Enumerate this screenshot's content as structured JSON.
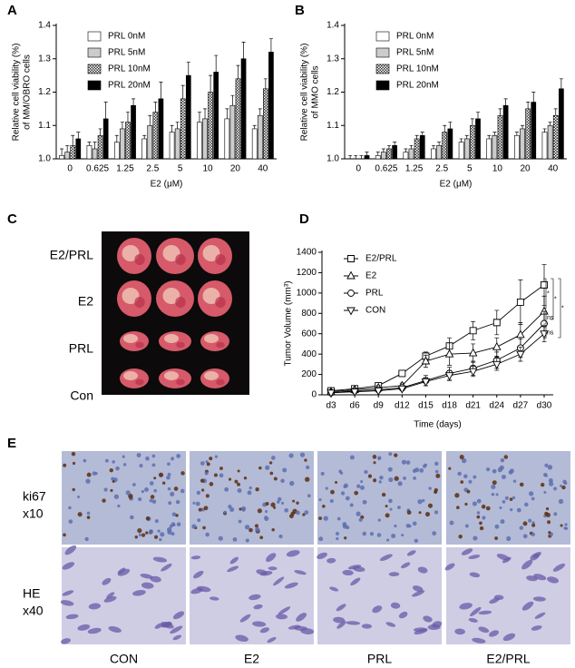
{
  "chart_data": [
    {
      "type": "bar",
      "panel": "A",
      "ylabel": [
        "Relative cell viability (%)",
        "of MM/OBRO cells"
      ],
      "xlabel": "E2 (μM)",
      "categories": [
        "0",
        "0.625",
        "1.25",
        "2.5",
        "5",
        "10",
        "20",
        "40"
      ],
      "ylim": [
        1.0,
        1.4
      ],
      "yticks": [
        {
          "value": 1.0,
          "label": "1.0"
        },
        1.1,
        1.2,
        1.3,
        1.4
      ],
      "legend": "upper left",
      "series": [
        {
          "name": "PRL 0nM",
          "color": "#ffffff",
          "values": [
            1.01,
            1.04,
            1.05,
            1.06,
            1.08,
            1.11,
            1.12,
            1.09
          ],
          "errors": [
            0.02,
            0.01,
            0.02,
            0.01,
            0.02,
            0.03,
            0.03,
            0.01
          ]
        },
        {
          "name": "PRL 5nM",
          "color": "#cccccc",
          "values": [
            1.02,
            1.03,
            1.09,
            1.1,
            1.09,
            1.12,
            1.16,
            1.13
          ],
          "errors": [
            0.02,
            0.02,
            0.02,
            0.03,
            0.02,
            0.03,
            0.03,
            0.02
          ]
        },
        {
          "name": "PRL 10nM",
          "color": "#777777",
          "hatch": true,
          "values": [
            1.04,
            1.07,
            1.11,
            1.14,
            1.18,
            1.2,
            1.24,
            1.21
          ],
          "errors": [
            0.03,
            0.02,
            0.03,
            0.03,
            0.04,
            0.05,
            0.04,
            0.03
          ]
        },
        {
          "name": "PRL 20nM",
          "color": "#000000",
          "values": [
            1.06,
            1.12,
            1.16,
            1.18,
            1.25,
            1.26,
            1.3,
            1.32
          ],
          "errors": [
            0.02,
            0.05,
            0.02,
            0.05,
            0.04,
            0.05,
            0.05,
            0.04
          ]
        }
      ]
    },
    {
      "type": "bar",
      "panel": "B",
      "ylabel": [
        "Relative cell viability (%)",
        "of MMO cells"
      ],
      "xlabel": "E2 (μM)",
      "categories": [
        "0",
        "0.625",
        "1.25",
        "2.5",
        "5",
        "10",
        "20",
        "40"
      ],
      "ylim": [
        1.0,
        1.4
      ],
      "yticks": [
        {
          "value": 1.0,
          "label": "1.0"
        },
        1.1,
        1.2,
        1.3,
        1.4
      ],
      "legend": "upper left",
      "series": [
        {
          "name": "PRL 0nM",
          "color": "#ffffff",
          "values": [
            1.0,
            1.01,
            1.02,
            1.03,
            1.05,
            1.06,
            1.07,
            1.08
          ],
          "errors": [
            0.01,
            0.01,
            0.01,
            0.01,
            0.01,
            0.01,
            0.01,
            0.01
          ]
        },
        {
          "name": "PRL 5nM",
          "color": "#cccccc",
          "values": [
            1.0,
            1.02,
            1.03,
            1.04,
            1.06,
            1.07,
            1.09,
            1.1
          ],
          "errors": [
            0.01,
            0.01,
            0.01,
            0.01,
            0.01,
            0.01,
            0.01,
            0.01
          ]
        },
        {
          "name": "PRL 10nM",
          "color": "#777777",
          "hatch": true,
          "values": [
            1.0,
            1.03,
            1.06,
            1.08,
            1.1,
            1.13,
            1.15,
            1.13
          ],
          "errors": [
            0.01,
            0.01,
            0.01,
            0.02,
            0.02,
            0.02,
            0.02,
            0.02
          ]
        },
        {
          "name": "PRL 20nM",
          "color": "#000000",
          "values": [
            1.01,
            1.04,
            1.07,
            1.09,
            1.12,
            1.16,
            1.17,
            1.21
          ],
          "errors": [
            0.01,
            0.01,
            0.01,
            0.02,
            0.02,
            0.02,
            0.03,
            0.03
          ]
        }
      ]
    },
    {
      "type": "line",
      "panel": "D",
      "ylabel": [
        "Tumor Volume (mm³)"
      ],
      "xlabel": "Time (days)",
      "categories": [
        "d3",
        "d6",
        "d9",
        "d12",
        "d15",
        "d18",
        "d21",
        "d24",
        "d27",
        "d30"
      ],
      "ylim": [
        0,
        1400
      ],
      "yticks": [
        0,
        200,
        400,
        600,
        800,
        1000,
        1200,
        1400
      ],
      "legend": "upper left",
      "annotations": [
        "*",
        "*",
        "*",
        "ns",
        "ns"
      ],
      "series": [
        {
          "name": "E2/PRL",
          "color": "#000000",
          "marker": "square",
          "values": [
            40,
            60,
            90,
            210,
            380,
            480,
            630,
            710,
            910,
            1080
          ],
          "errors": [
            15,
            20,
            25,
            30,
            40,
            80,
            90,
            120,
            220,
            200
          ]
        },
        {
          "name": "E2",
          "color": "#000000",
          "marker": "triangle-up",
          "values": [
            30,
            50,
            70,
            90,
            330,
            400,
            410,
            470,
            590,
            820
          ],
          "errors": [
            10,
            15,
            20,
            25,
            60,
            110,
            90,
            90,
            120,
            150
          ]
        },
        {
          "name": "PRL",
          "color": "#000000",
          "marker": "circle",
          "values": [
            20,
            40,
            50,
            70,
            140,
            210,
            260,
            340,
            460,
            700
          ],
          "errors": [
            10,
            15,
            15,
            20,
            50,
            60,
            70,
            80,
            90,
            120
          ]
        },
        {
          "name": "CON",
          "color": "#000000",
          "marker": "triangle-down",
          "values": [
            20,
            30,
            40,
            60,
            130,
            190,
            230,
            300,
            400,
            600
          ],
          "errors": [
            10,
            10,
            15,
            20,
            40,
            50,
            50,
            60,
            70,
            80
          ]
        }
      ]
    }
  ],
  "panel_c": {
    "label": "C",
    "rows": [
      "E2/PRL",
      "E2",
      "PRL",
      "Con"
    ]
  },
  "panel_e": {
    "label": "E",
    "rows": [
      [
        "ki67",
        "x10"
      ],
      [
        "HE",
        "x40"
      ]
    ],
    "columns": [
      "CON",
      "E2",
      "PRL",
      "E2/PRL"
    ]
  }
}
